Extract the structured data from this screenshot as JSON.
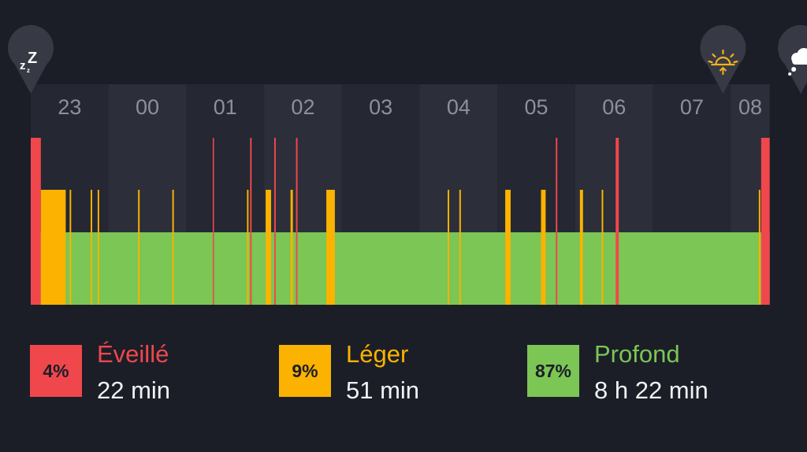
{
  "colors": {
    "background": "#1b1e27",
    "column_dark": "#252732",
    "column_light": "#2c2e39",
    "hour_label": "#8d909a",
    "awake": "#f0474d",
    "light": "#fbb200",
    "deep": "#7bc654",
    "marker_bubble": "#373a44",
    "sunrise_icon": "#f6b21b"
  },
  "chart_data": {
    "type": "area",
    "x_axis": {
      "tick_labels": [
        "23",
        "00",
        "01",
        "02",
        "03",
        "04",
        "05",
        "06",
        "07",
        "08"
      ],
      "unit": "hour of day",
      "range_hours": [
        23.0,
        32.5
      ]
    },
    "stage_levels": {
      "awake": 3,
      "light": 2,
      "deep": 1
    },
    "baseline_stage": "deep",
    "segments": [
      {
        "stage": "awake",
        "start": 23.0,
        "end": 23.13
      },
      {
        "stage": "light",
        "start": 23.13,
        "end": 23.45
      },
      {
        "stage": "light",
        "start": 23.5,
        "end": 23.52
      },
      {
        "stage": "light",
        "start": 23.77,
        "end": 23.79
      },
      {
        "stage": "light",
        "start": 23.86,
        "end": 23.88
      },
      {
        "stage": "light",
        "start": 24.38,
        "end": 24.4
      },
      {
        "stage": "light",
        "start": 24.82,
        "end": 24.84
      },
      {
        "stage": "awake",
        "start": 25.34,
        "end": 25.35
      },
      {
        "stage": "light",
        "start": 25.78,
        "end": 25.8
      },
      {
        "stage": "awake",
        "start": 25.82,
        "end": 25.84
      },
      {
        "stage": "light",
        "start": 26.02,
        "end": 26.09
      },
      {
        "stage": "awake",
        "start": 26.13,
        "end": 26.15
      },
      {
        "stage": "light",
        "start": 26.34,
        "end": 26.37
      },
      {
        "stage": "awake",
        "start": 26.41,
        "end": 26.43
      },
      {
        "stage": "light",
        "start": 26.8,
        "end": 26.91
      },
      {
        "stage": "light",
        "start": 28.36,
        "end": 28.38
      },
      {
        "stage": "light",
        "start": 28.51,
        "end": 28.53
      },
      {
        "stage": "light",
        "start": 29.1,
        "end": 29.17
      },
      {
        "stage": "light",
        "start": 29.56,
        "end": 29.62
      },
      {
        "stage": "awake",
        "start": 29.75,
        "end": 29.77
      },
      {
        "stage": "light",
        "start": 30.06,
        "end": 30.1
      },
      {
        "stage": "light",
        "start": 30.34,
        "end": 30.36
      },
      {
        "stage": "awake",
        "start": 30.52,
        "end": 30.56
      },
      {
        "stage": "light",
        "start": 32.36,
        "end": 32.38
      },
      {
        "stage": "awake",
        "start": 32.39,
        "end": 32.5
      }
    ],
    "markers": [
      {
        "icon": "sleep-zz-icon",
        "time": 23.0
      },
      {
        "icon": "sunrise-icon",
        "time": 31.9
      },
      {
        "icon": "dream-cloud-icon",
        "time": 32.9
      }
    ],
    "legend_position": "bottom",
    "grid": false
  },
  "legend": [
    {
      "key": "awake",
      "percent": "4%",
      "name": "Éveillé",
      "duration": "22 min"
    },
    {
      "key": "light",
      "percent": "9%",
      "name": "Léger",
      "duration": "51 min"
    },
    {
      "key": "deep",
      "percent": "87%",
      "name": "Profond",
      "duration": "8 h 22 min"
    }
  ]
}
